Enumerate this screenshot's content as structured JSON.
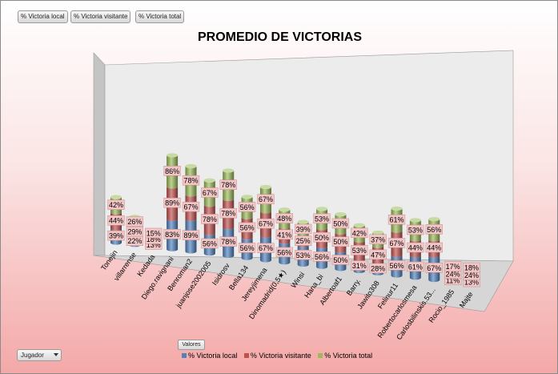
{
  "filters": [
    "% Victoria local",
    "% Victoria visitante",
    "% Victoria total"
  ],
  "valores_label": "Valores",
  "jugador_label": "Jugador",
  "colors": {
    "local": "#4f81bd",
    "visitante": "#c0504d",
    "total": "#9bbb59"
  },
  "chart_data": {
    "type": "bar",
    "stacked": true,
    "title": "PROMEDIO DE VICTORIAS",
    "categories": [
      "Tonejin",
      "villarrense",
      "Kedada",
      "Diego.ravignani",
      "Benroman2",
      "juanjose2002005",
      "Isidrosv",
      "Bella134",
      "Jereyjimena",
      "Dinomadrid(0,5★)",
      "Winsi",
      "Hana_bi",
      "Albertoaf1",
      "Barry.",
      "Jawito308",
      "Felinur11",
      "Robertocarlosmesa",
      "Carlosbilinskis.53...",
      "Rocio_1985",
      "Majte"
    ],
    "series": [
      {
        "name": "% Victoria local",
        "values": [
          39,
          22,
          13,
          83,
          89,
          56,
          78,
          56,
          67,
          56,
          53,
          56,
          50,
          31,
          28,
          56,
          61,
          67,
          11,
          13
        ]
      },
      {
        "name": "% Victoria visitante",
        "values": [
          44,
          29,
          18,
          89,
          67,
          78,
          78,
          56,
          67,
          41,
          25,
          50,
          50,
          53,
          47,
          67,
          44,
          44,
          24,
          24
        ]
      },
      {
        "name": "% Victoria total",
        "values": [
          42,
          26,
          15,
          86,
          78,
          67,
          78,
          56,
          67,
          48,
          39,
          53,
          50,
          42,
          37,
          61,
          53,
          56,
          17,
          18
        ]
      }
    ],
    "legend": "bottom"
  }
}
